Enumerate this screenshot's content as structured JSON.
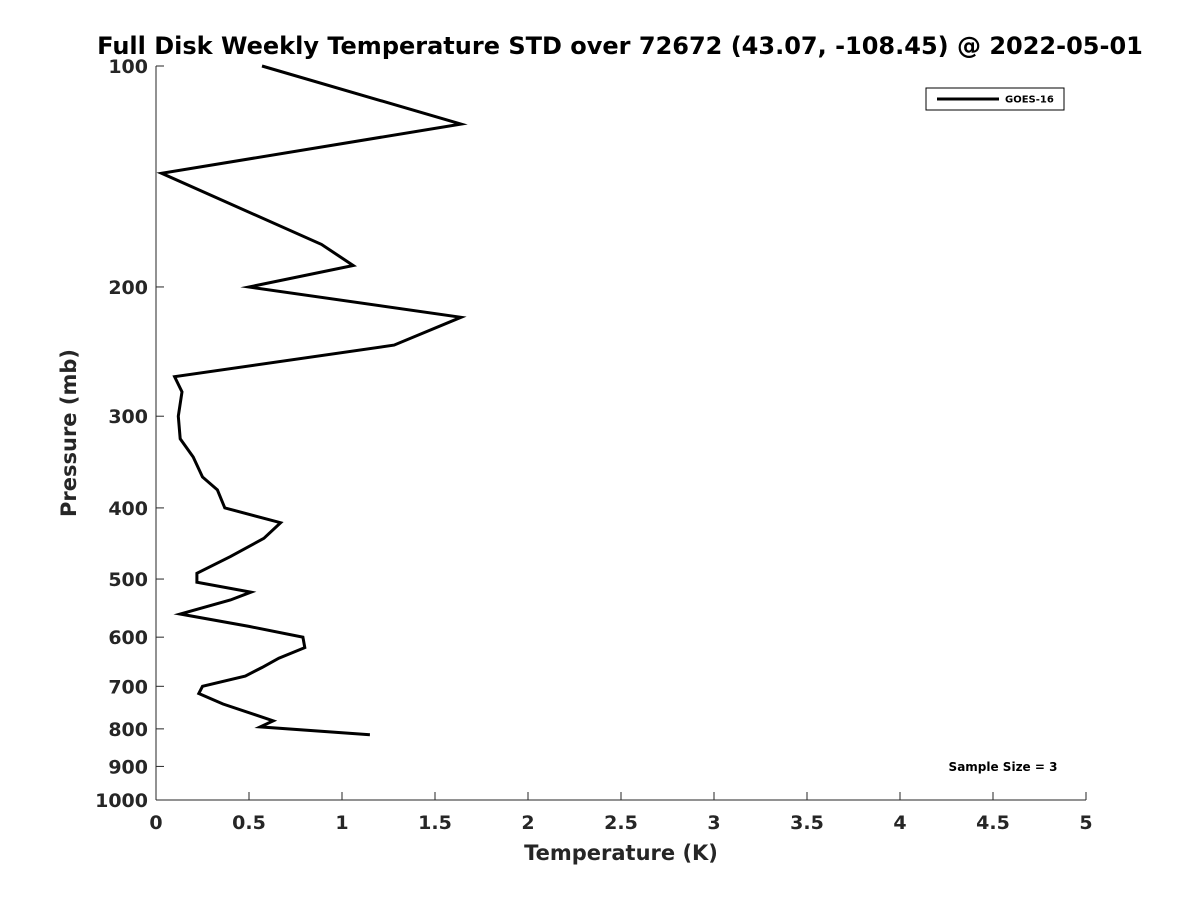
{
  "chart_data": {
    "type": "line",
    "title": "Full Disk Weekly Temperature STD over 72672 (43.07, -108.45) @ 2022-05-01",
    "xlabel": "Temperature (K)",
    "ylabel": "Pressure (mb)",
    "xlim": [
      0,
      5
    ],
    "ylim": [
      100,
      1000
    ],
    "y_scale": "log",
    "y_reversed": true,
    "x_ticks": [
      "0",
      "0.5",
      "1",
      "1.5",
      "2",
      "2.5",
      "3",
      "3.5",
      "4",
      "4.5",
      "5"
    ],
    "y_ticks": [
      "100",
      "200",
      "300",
      "400",
      "500",
      "600",
      "700",
      "800",
      "900",
      "1000"
    ],
    "grid": false,
    "legend": {
      "position": "top-right",
      "entries": [
        "GOES-16"
      ]
    },
    "annotation": "Sample Size = 3",
    "series": [
      {
        "name": "GOES-16",
        "color": "#000000",
        "points": [
          [
            0.57,
            100
          ],
          [
            1.64,
            120
          ],
          [
            0.03,
            140
          ],
          [
            0.89,
            175
          ],
          [
            1.06,
            187
          ],
          [
            0.5,
            200
          ],
          [
            1.64,
            220
          ],
          [
            1.28,
            240
          ],
          [
            0.1,
            265
          ],
          [
            0.14,
            278
          ],
          [
            0.12,
            300
          ],
          [
            0.13,
            322
          ],
          [
            0.2,
            341
          ],
          [
            0.25,
            363
          ],
          [
            0.33,
            378
          ],
          [
            0.37,
            400
          ],
          [
            0.67,
            419
          ],
          [
            0.58,
            440
          ],
          [
            0.4,
            466
          ],
          [
            0.22,
            491
          ],
          [
            0.22,
            505
          ],
          [
            0.51,
            521
          ],
          [
            0.4,
            534
          ],
          [
            0.13,
            558
          ],
          [
            0.5,
            580
          ],
          [
            0.79,
            600
          ],
          [
            0.8,
            620
          ],
          [
            0.66,
            641
          ],
          [
            0.57,
            660
          ],
          [
            0.48,
            678
          ],
          [
            0.25,
            700
          ],
          [
            0.23,
            716
          ],
          [
            0.36,
            740
          ],
          [
            0.53,
            765
          ],
          [
            0.63,
            780
          ],
          [
            0.56,
            795
          ],
          [
            1.15,
            815
          ]
        ]
      }
    ]
  }
}
